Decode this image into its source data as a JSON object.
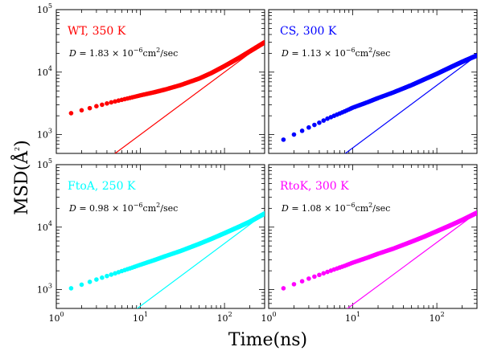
{
  "figure": {
    "xlabel": "Time(ns)",
    "ylabel": "MSD(Å²)",
    "ylabel_main": "MSD(",
    "ylabel_unit": "Å",
    "ylabel_exp": "2",
    "ylabel_close": ")"
  },
  "chart_data": [
    {
      "type": "scatter",
      "panel": "top-left",
      "label": "WT, 350 K",
      "color": "#ff0000",
      "D_text": {
        "prefix": "D",
        "mid": " = 1.83 × 10",
        "exp": "−6",
        "unit": "cm",
        "unit_exp": "2",
        "tail": "/sec"
      },
      "D_value": 1.83e-06,
      "xscale": "log",
      "yscale": "log",
      "xlim": [
        1,
        300
      ],
      "ylim": [
        500,
        100000
      ],
      "x": [
        1.5,
        2,
        2.5,
        3,
        4,
        5,
        6,
        8,
        10,
        15,
        20,
        30,
        50,
        70,
        100,
        150,
        200,
        300
      ],
      "y": [
        2200,
        2450,
        2650,
        2850,
        3150,
        3400,
        3600,
        3950,
        4250,
        4800,
        5300,
        6200,
        7900,
        9700,
        12500,
        17000,
        21500,
        30000
      ],
      "fit_line": {
        "x": [
          4.9,
          300
        ],
        "y": [
          490,
          30000
        ]
      },
      "x_ticks": [
        "10",
        "10",
        "10"
      ],
      "x_tick_exps": [
        "0",
        "1",
        "2"
      ],
      "y_ticks": [
        "10",
        "10",
        "10"
      ],
      "y_tick_exps": [
        "3",
        "4",
        "5"
      ]
    },
    {
      "type": "scatter",
      "panel": "top-right",
      "label": "CS, 300 K",
      "color": "#0000ff",
      "D_text": {
        "prefix": "D",
        "mid": " = 1.13 × 10",
        "exp": "−6",
        "unit": "cm",
        "unit_exp": "2",
        "tail": "/sec"
      },
      "D_value": 1.13e-06,
      "xscale": "log",
      "yscale": "log",
      "xlim": [
        1,
        300
      ],
      "ylim": [
        500,
        100000
      ],
      "x": [
        1.5,
        2,
        2.5,
        3,
        4,
        5,
        6,
        8,
        10,
        15,
        20,
        30,
        50,
        70,
        100,
        150,
        200,
        300
      ],
      "y": [
        830,
        1000,
        1150,
        1300,
        1550,
        1800,
        2000,
        2350,
        2700,
        3300,
        3850,
        4700,
        6200,
        7600,
        9400,
        12200,
        14600,
        18500
      ],
      "fit_line": {
        "x": [
          8,
          300
        ],
        "y": [
          490,
          18500
        ]
      },
      "x_ticks": [
        "10",
        "10",
        "10"
      ],
      "x_tick_exps": [
        "0",
        "1",
        "2"
      ],
      "y_ticks": [
        "10",
        "10",
        "10"
      ],
      "y_tick_exps": [
        "3",
        "4",
        "5"
      ]
    },
    {
      "type": "scatter",
      "panel": "bottom-left",
      "label": "FtoA, 250 K",
      "color": "#00ffff",
      "D_text": {
        "prefix": "D",
        "mid": " = 0.98 × 10",
        "exp": "−6",
        "unit": "cm",
        "unit_exp": "2",
        "tail": "/sec"
      },
      "D_value": 9.8e-07,
      "xscale": "log",
      "yscale": "log",
      "xlim": [
        1,
        300
      ],
      "ylim": [
        500,
        100000
      ],
      "x": [
        1.5,
        2,
        2.5,
        3,
        4,
        5,
        6,
        8,
        10,
        15,
        20,
        30,
        50,
        70,
        100,
        150,
        200,
        300
      ],
      "y": [
        1050,
        1200,
        1330,
        1450,
        1650,
        1820,
        1980,
        2250,
        2500,
        3000,
        3450,
        4150,
        5400,
        6500,
        8000,
        10200,
        12200,
        16500
      ],
      "fit_line": {
        "x": [
          9,
          300
        ],
        "y": [
          490,
          16500
        ]
      },
      "x_ticks": [
        "10",
        "10",
        "10"
      ],
      "x_tick_exps": [
        "0",
        "1",
        "2"
      ],
      "y_ticks": [
        "10",
        "10",
        "10"
      ],
      "y_tick_exps": [
        "3",
        "4",
        "5"
      ]
    },
    {
      "type": "scatter",
      "panel": "bottom-right",
      "label": "RtoK, 300 K",
      "color": "#ff00ff",
      "D_text": {
        "prefix": "D",
        "mid": " = 1.08 × 10",
        "exp": "−6",
        "unit": "cm",
        "unit_exp": "2",
        "tail": "/sec"
      },
      "D_value": 1.08e-06,
      "xscale": "log",
      "yscale": "log",
      "xlim": [
        1,
        300
      ],
      "ylim": [
        500,
        100000
      ],
      "x": [
        1.5,
        2,
        2.5,
        3,
        4,
        5,
        6,
        8,
        10,
        15,
        20,
        30,
        50,
        70,
        100,
        150,
        200,
        300
      ],
      "y": [
        1050,
        1220,
        1360,
        1500,
        1720,
        1920,
        2100,
        2400,
        2700,
        3250,
        3750,
        4500,
        5850,
        7000,
        8600,
        10900,
        13000,
        17000
      ],
      "fit_line": {
        "x": [
          8.5,
          300
        ],
        "y": [
          490,
          17000
        ]
      },
      "x_ticks": [
        "10",
        "10",
        "10"
      ],
      "x_tick_exps": [
        "0",
        "1",
        "2"
      ],
      "y_ticks": [
        "10",
        "10",
        "10"
      ],
      "y_tick_exps": [
        "3",
        "4",
        "5"
      ]
    }
  ]
}
